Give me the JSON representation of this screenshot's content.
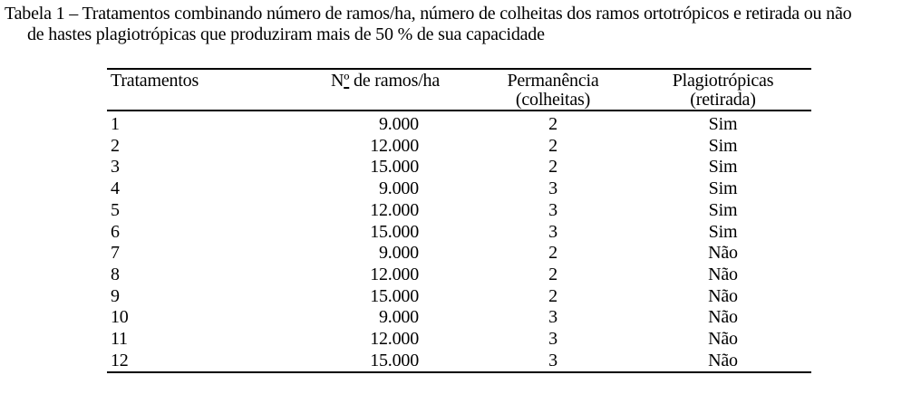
{
  "caption": {
    "line1": "Tabela 1 – Tratamentos combinando número de ramos/ha, número de colheitas dos ramos ortotrópicos e retirada ou não",
    "line2": "de hastes plagiotrópicas que produziram mais de 50 % de sua capacidade"
  },
  "table": {
    "columns": [
      {
        "label": "Tratamentos"
      },
      {
        "label": "Nº de ramos/ha",
        "label_n": "N",
        "label_ordinal": "º",
        "label_rest": " de ramos/ha"
      },
      {
        "label": "Permanência",
        "sublabel": "(colheitas)"
      },
      {
        "label": "Plagiotrópicas",
        "sublabel": "(retirada)"
      }
    ],
    "rows": [
      {
        "tratamento": "1",
        "ramos_ha": "9.000",
        "permanencia": "2",
        "plagiotropicas": "Sim"
      },
      {
        "tratamento": "2",
        "ramos_ha": "12.000",
        "permanencia": "2",
        "plagiotropicas": "Sim"
      },
      {
        "tratamento": "3",
        "ramos_ha": "15.000",
        "permanencia": "2",
        "plagiotropicas": "Sim"
      },
      {
        "tratamento": "4",
        "ramos_ha": "9.000",
        "permanencia": "3",
        "plagiotropicas": "Sim"
      },
      {
        "tratamento": "5",
        "ramos_ha": "12.000",
        "permanencia": "3",
        "plagiotropicas": "Sim"
      },
      {
        "tratamento": "6",
        "ramos_ha": "15.000",
        "permanencia": "3",
        "plagiotropicas": "Sim"
      },
      {
        "tratamento": "7",
        "ramos_ha": "9.000",
        "permanencia": "2",
        "plagiotropicas": "Não"
      },
      {
        "tratamento": "8",
        "ramos_ha": "12.000",
        "permanencia": "2",
        "plagiotropicas": "Não"
      },
      {
        "tratamento": "9",
        "ramos_ha": "15.000",
        "permanencia": "2",
        "plagiotropicas": "Não"
      },
      {
        "tratamento": "10",
        "ramos_ha": "9.000",
        "permanencia": "3",
        "plagiotropicas": "Não"
      },
      {
        "tratamento": "11",
        "ramos_ha": "12.000",
        "permanencia": "3",
        "plagiotropicas": "Não"
      },
      {
        "tratamento": "12",
        "ramos_ha": "15.000",
        "permanencia": "3",
        "plagiotropicas": "Não"
      }
    ]
  },
  "colors": {
    "text": "#000000",
    "background": "#ffffff",
    "rule": "#000000"
  }
}
